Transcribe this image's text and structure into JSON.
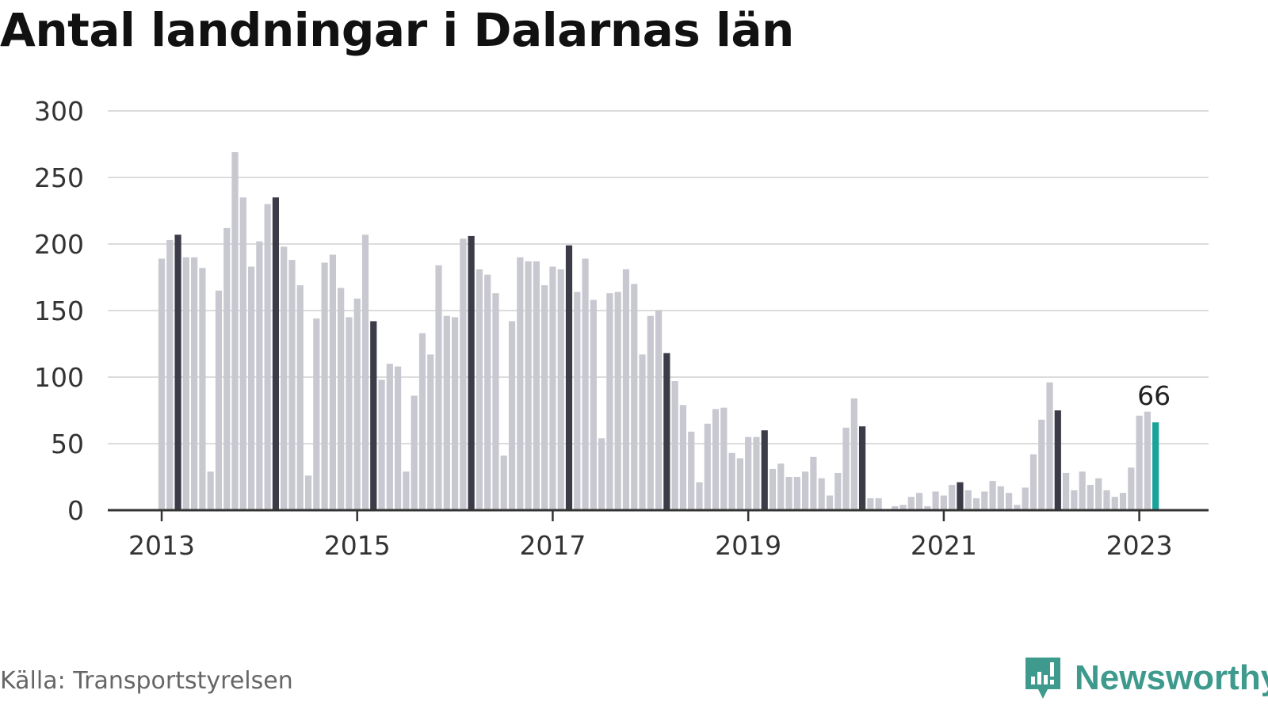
{
  "title": "Antal landningar i Dalarnas län",
  "source": "Källa: Transportstyrelsen",
  "brand": {
    "name": "Newsworthy",
    "logo_icon": "newsworthy-chart-bubble-icon"
  },
  "colors": {
    "bar": "#c8c8d0",
    "highlight_bar": "#3c3c48",
    "latest_bar": "#1aa39a",
    "grid": "#dcdcdc",
    "axis": "#333333",
    "brand": "#3d9a8c"
  },
  "chart_data": {
    "type": "bar",
    "title": "Antal landningar i Dalarnas län",
    "xlabel": "",
    "ylabel": "",
    "ylim": [
      0,
      300
    ],
    "yticks": [
      "0",
      "50",
      "100",
      "150",
      "200",
      "250",
      "300"
    ],
    "xticks": [
      "2013",
      "2015",
      "2017",
      "2019",
      "2021",
      "2023"
    ],
    "grid": true,
    "frequency": "monthly",
    "start": "2013-01",
    "highlight": "every March bar dark; latest month teal",
    "latest_label": "66",
    "values": [
      189,
      203,
      207,
      190,
      190,
      182,
      29,
      165,
      212,
      269,
      235,
      183,
      202,
      230,
      235,
      198,
      188,
      169,
      26,
      144,
      186,
      192,
      167,
      145,
      159,
      207,
      142,
      98,
      110,
      108,
      29,
      86,
      133,
      117,
      184,
      146,
      145,
      204,
      206,
      181,
      177,
      163,
      41,
      142,
      190,
      187,
      187,
      169,
      183,
      181,
      199,
      164,
      189,
      158,
      54,
      163,
      164,
      181,
      170,
      117,
      146,
      150,
      118,
      97,
      79,
      59,
      21,
      65,
      76,
      77,
      43,
      39,
      55,
      55,
      60,
      31,
      35,
      25,
      25,
      29,
      40,
      24,
      11,
      28,
      62,
      84,
      63,
      9,
      9,
      0,
      3,
      4,
      10,
      13,
      3,
      14,
      11,
      19,
      21,
      15,
      9,
      14,
      22,
      18,
      13,
      4,
      17,
      42,
      68,
      96,
      75,
      28,
      15,
      29,
      19,
      24,
      15,
      10,
      13,
      32,
      71,
      74,
      66
    ]
  }
}
